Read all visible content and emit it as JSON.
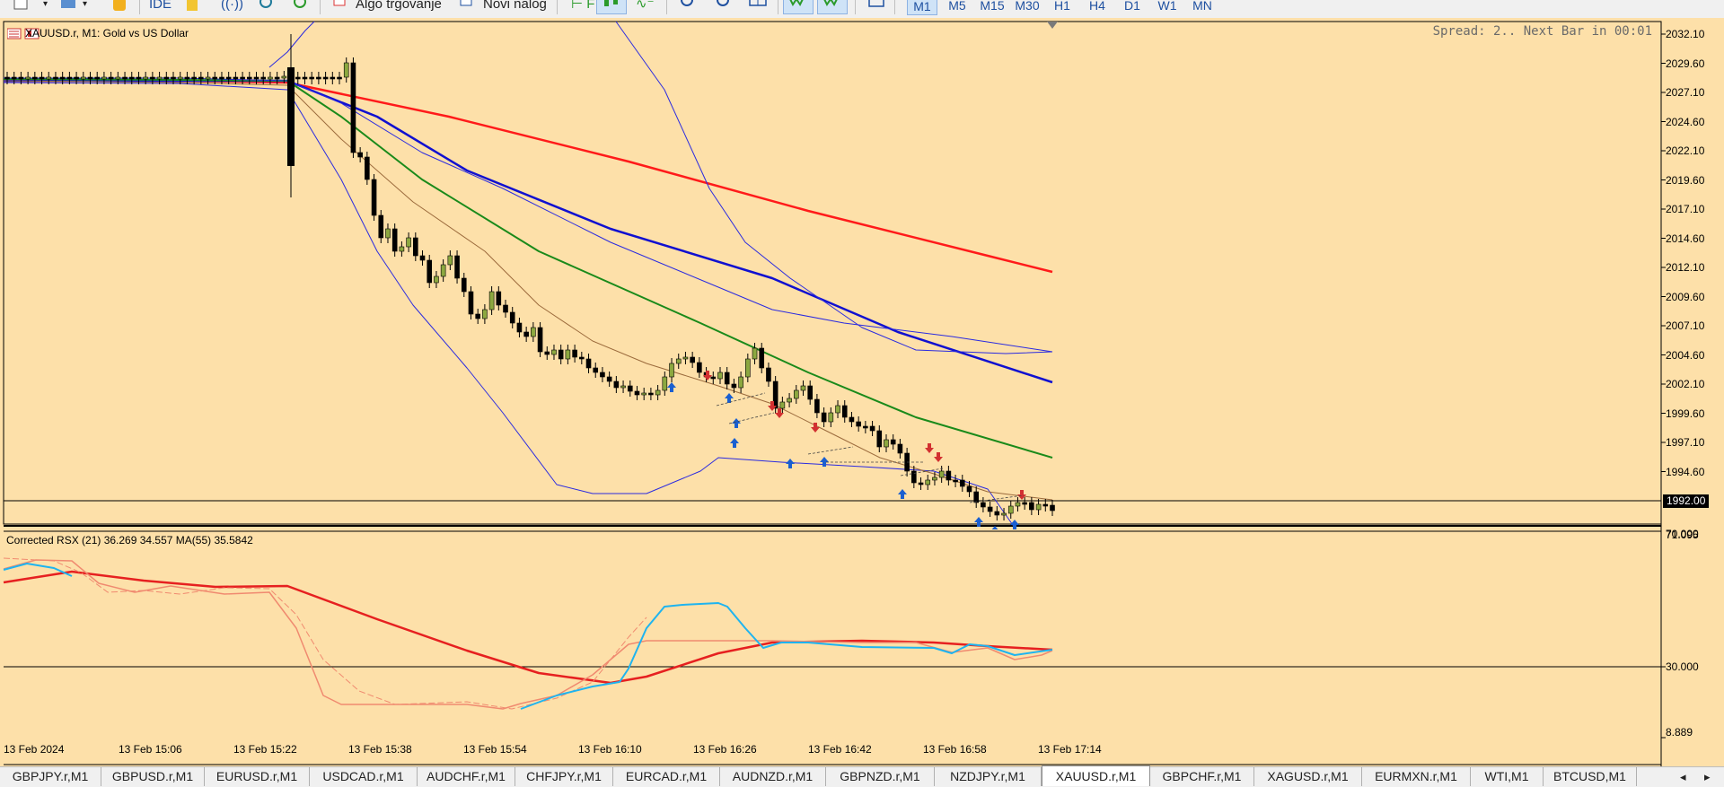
{
  "toolbar": {
    "ide_label": "IDE",
    "algo_label": "Algo trgovanje",
    "novi_nalog_label": "Novi nalog",
    "timeframes": [
      "M1",
      "M5",
      "M15",
      "M30",
      "H1",
      "H4",
      "D1",
      "W1",
      "MN"
    ],
    "active_timeframe": "M1",
    "icons": [
      "open-file-icon",
      "dropdown-icon",
      "profiles-icon",
      "coin-icon",
      "folder-icon",
      "signal-icon",
      "market-icon",
      "add-chart-icon",
      "algo-icon",
      "new-order-icon",
      "chart-period-icon",
      "candles-icon",
      "line-chart-icon",
      "zoom-in-icon",
      "zoom-out-icon",
      "tile-windows-icon",
      "autoscroll-icon",
      "chart-shift-icon",
      "screenshot-icon"
    ]
  },
  "chart": {
    "title": "XAUUSD.r, M1:  Gold vs US Dollar",
    "spread_text": "Spread: 2.. Next Bar in 00:01",
    "current_price": "1992.00",
    "price_axis": [
      "2032.10",
      "2029.60",
      "2027.10",
      "2024.60",
      "2022.10",
      "2019.60",
      "2017.10",
      "2014.60",
      "2012.10",
      "2009.60",
      "2007.10",
      "2004.60",
      "2002.10",
      "1999.60",
      "1997.10",
      "1994.60"
    ],
    "time_axis": [
      "13 Feb 2024",
      "13 Feb 15:06",
      "13 Feb 15:22",
      "13 Feb 15:38",
      "13 Feb 15:54",
      "13 Feb 16:10",
      "13 Feb 16:26",
      "13 Feb 16:42",
      "13 Feb 16:58",
      "13 Feb 17:14"
    ],
    "colors": {
      "background": "#fde0a9",
      "bull_candle": "#8ca840",
      "bear_candle": "#000000",
      "ma_red": "#ff1a1a",
      "ma_blue": "#1010d0",
      "ma_green": "#1a8a1a",
      "band_blue": "#2a2ae0",
      "ma_brown": "#9b6a3c"
    }
  },
  "indicator": {
    "title": "Corrected RSX (21) 36.269 34.557 MA(55) 35.5842",
    "axis_top": "71.095",
    "axis_top_overlap": "70.000",
    "axis_mid": "30.000",
    "axis_bottom": "8.889",
    "colors": {
      "rsx": "#1eb4f0",
      "ma": "#e62020",
      "corrected": "#f08a70"
    }
  },
  "tabs": [
    "GBPJPY.r,M1",
    "GBPUSD.r,M1",
    "EURUSD.r,M1",
    "USDCAD.r,M1",
    "AUDCHF.r,M1",
    "CHFJPY.r,M1",
    "EURCAD.r,M1",
    "AUDNZD.r,M1",
    "GBPNZD.r,M1",
    "NZDJPY.r,M1",
    "XAUUSD.r,M1",
    "GBPCHF.r,M1",
    "XAGUSD.r,M1",
    "EURMXN.r,M1",
    "WTI,M1",
    "BTCUSD,M1"
  ],
  "active_tab": "XAUUSD.r,M1",
  "tab_arrows": {
    "left": "◂",
    "right": "▸"
  }
}
